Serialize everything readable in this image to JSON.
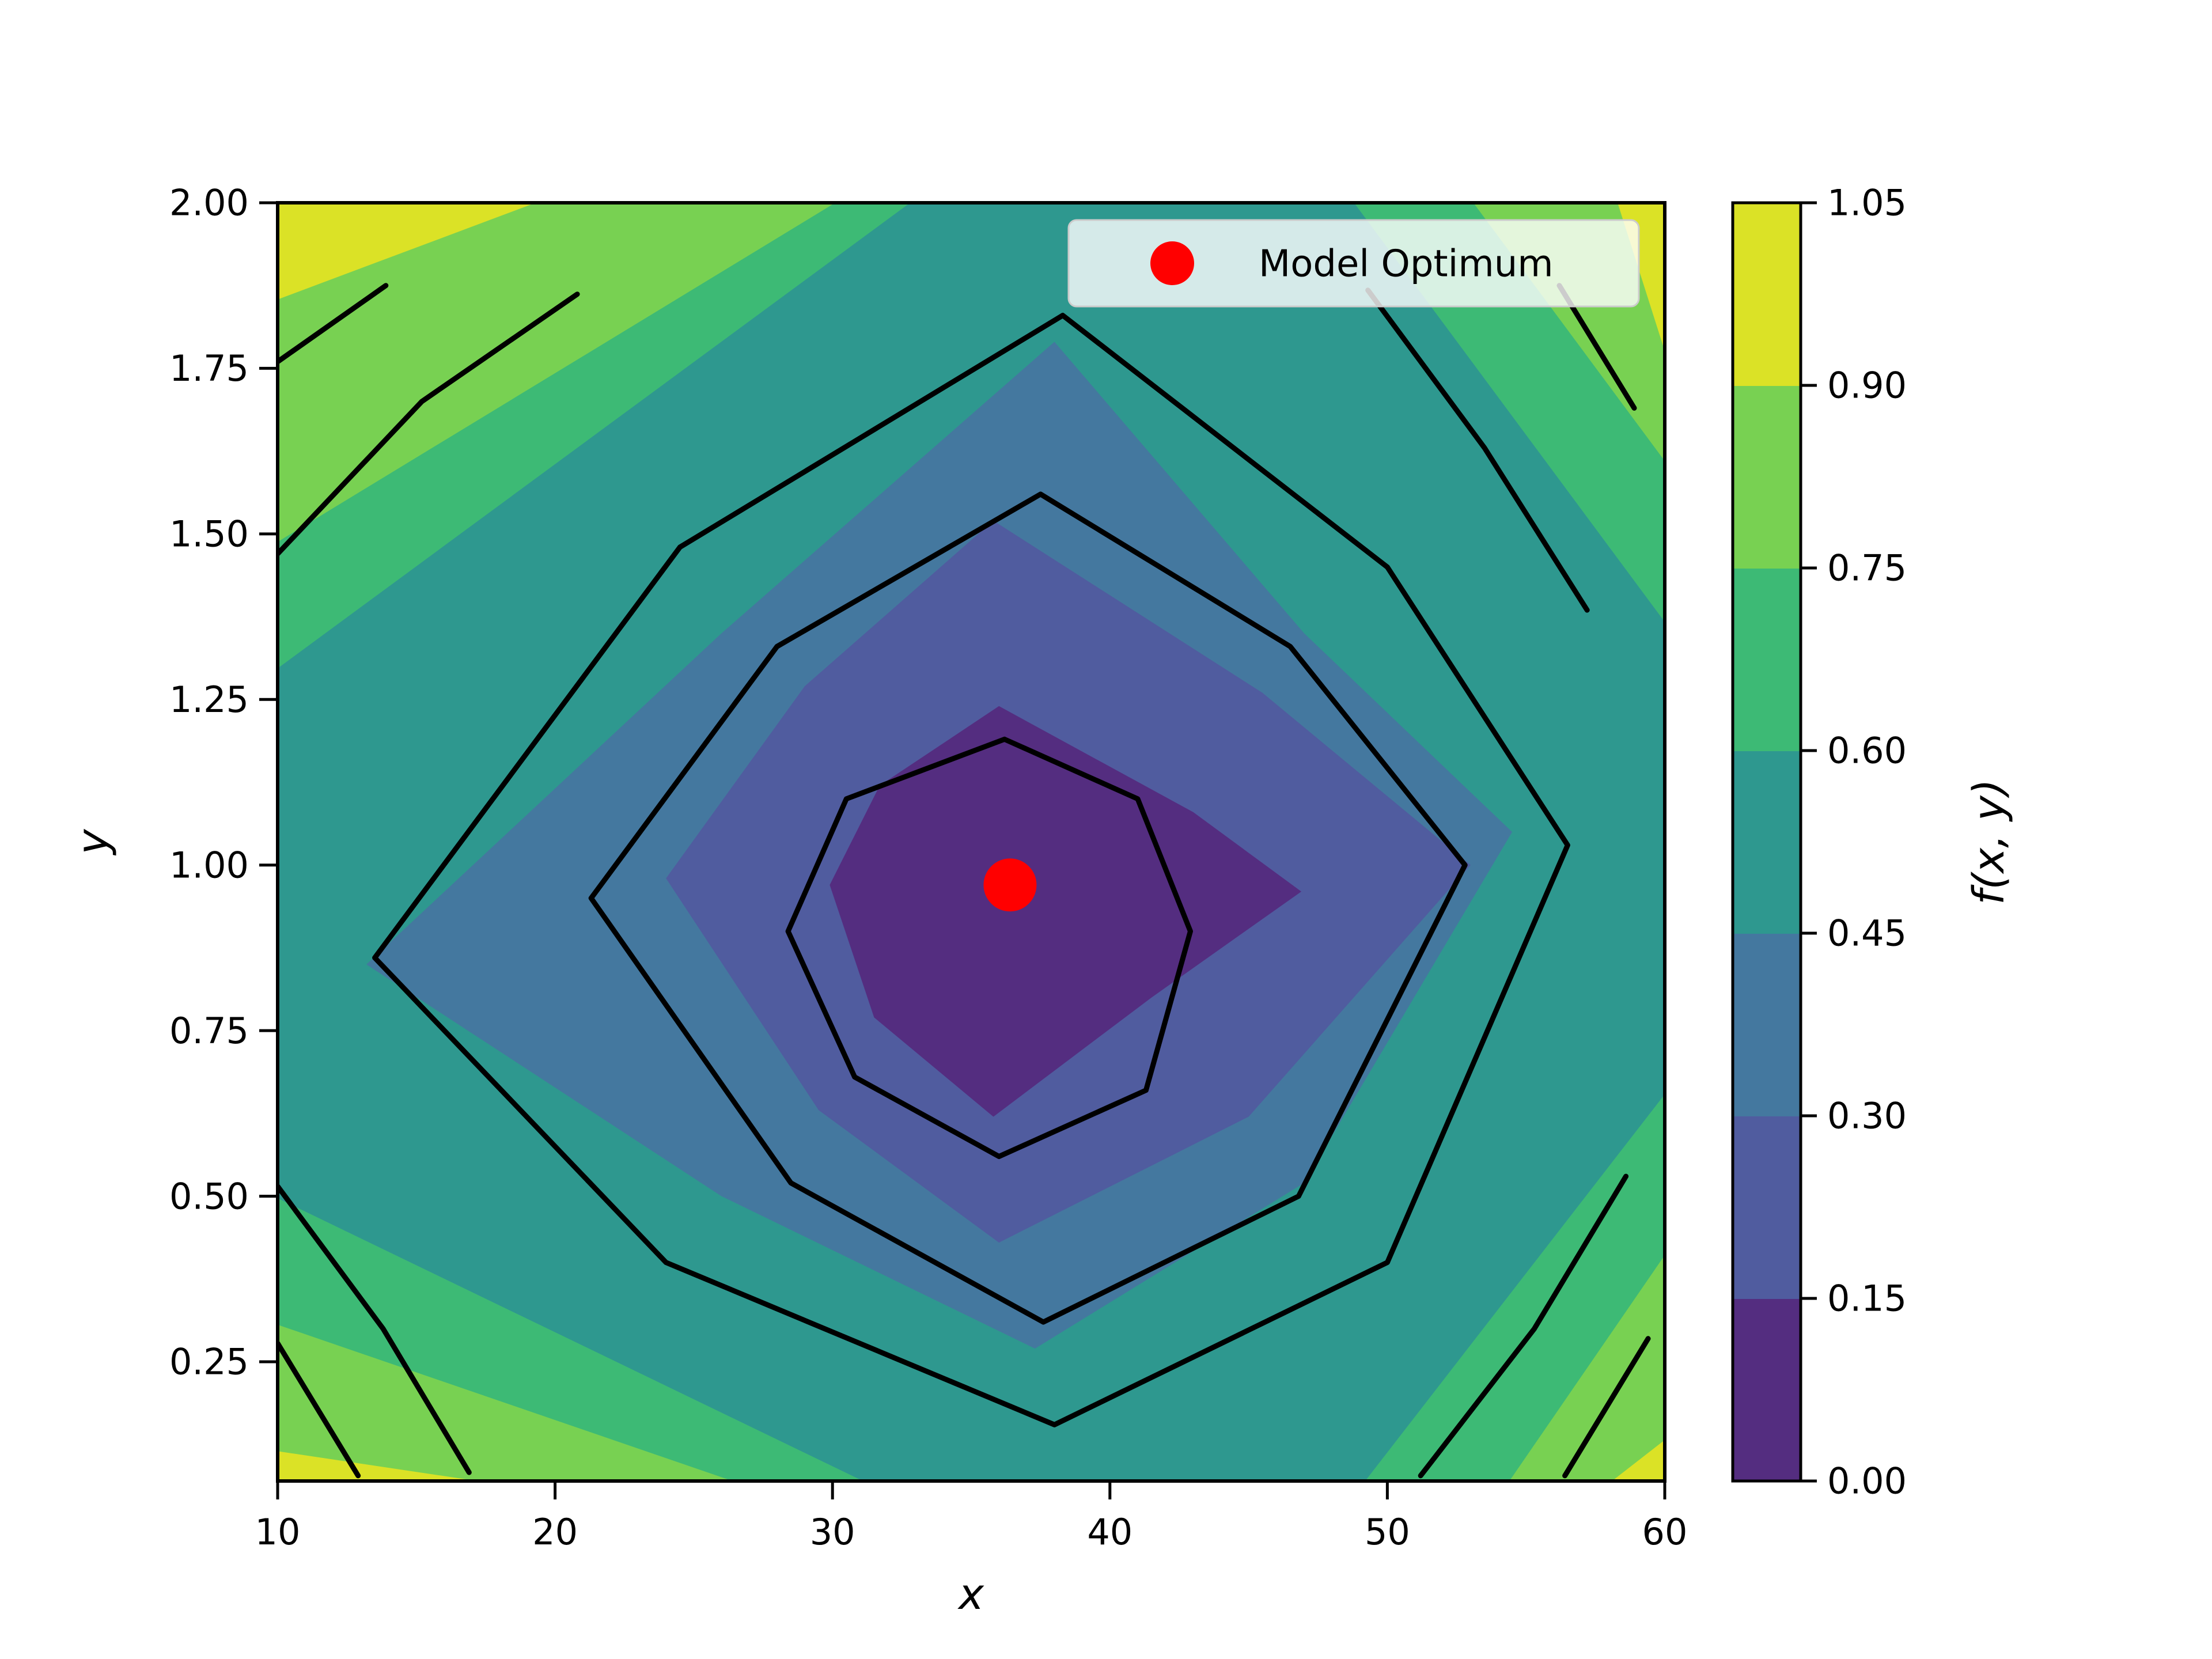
{
  "figure": {
    "background": "#ffffff",
    "text_color": "#000000"
  },
  "chart_data": {
    "type": "contour",
    "title": "",
    "xlabel": "x",
    "ylabel": "y",
    "xlim": [
      10,
      60
    ],
    "ylim": [
      0.07,
      2.0
    ],
    "grid": false,
    "x_ticks": {
      "values": [
        10,
        20,
        30,
        40,
        50,
        60
      ],
      "labels": [
        "10",
        "20",
        "30",
        "40",
        "50",
        "60"
      ]
    },
    "y_ticks": {
      "values": [
        2.0,
        1.75,
        1.5,
        1.25,
        1.0,
        0.75,
        0.5,
        0.25
      ],
      "labels": [
        "2.00",
        "1.75",
        "1.50",
        "1.25",
        "1.00",
        "0.75",
        "0.50",
        "0.25"
      ]
    },
    "levels": [
      0.0,
      0.15,
      0.3,
      0.45,
      0.6,
      0.75,
      0.9,
      1.05
    ],
    "band_colors": [
      "#542d80",
      "#505c9f",
      "#44789f",
      "#2e988f",
      "#3dba75",
      "#78d152",
      "#dbe226"
    ],
    "contour_line_color": "#000000",
    "bands": [
      {
        "max_level": 1.05,
        "polygon": "FULL"
      },
      {
        "max_level": 0.9,
        "polygon": [
          [
            19.3,
            2.0
          ],
          [
            58.3,
            2.0
          ],
          [
            60,
            1.776
          ],
          [
            60,
            0.132
          ],
          [
            58.1,
            0.07
          ],
          [
            17.2,
            0.07
          ],
          [
            10,
            0.115
          ],
          [
            10,
            1.854
          ]
        ]
      },
      {
        "max_level": 0.75,
        "polygon": [
          [
            30.1,
            2.0
          ],
          [
            53.1,
            2.0
          ],
          [
            60,
            1.61
          ],
          [
            60,
            0.411
          ],
          [
            54.4,
            0.07
          ],
          [
            26.4,
            0.07
          ],
          [
            10,
            0.306
          ],
          [
            10,
            1.488
          ]
        ]
      },
      {
        "max_level": 0.6,
        "polygon": [
          [
            32.8,
            2.0
          ],
          [
            48.8,
            2.0
          ],
          [
            60,
            1.367
          ],
          [
            60,
            0.654
          ],
          [
            49.2,
            0.07
          ],
          [
            31.1,
            0.07
          ],
          [
            10,
            0.497
          ],
          [
            10,
            1.297
          ]
        ]
      },
      {
        "max_level": 0.45,
        "polygon": [
          [
            38.0,
            1.79
          ],
          [
            47.0,
            1.35
          ],
          [
            54.5,
            1.05
          ],
          [
            47.0,
            0.52
          ],
          [
            37.3,
            0.27
          ],
          [
            26.0,
            0.5
          ],
          [
            13.2,
            0.85
          ],
          [
            26.0,
            1.35
          ]
        ]
      },
      {
        "max_level": 0.3,
        "polygon": [
          [
            35.8,
            1.52
          ],
          [
            45.5,
            1.26
          ],
          [
            53.0,
            1.0
          ],
          [
            45.0,
            0.62
          ],
          [
            36.0,
            0.43
          ],
          [
            29.5,
            0.63
          ],
          [
            24.0,
            0.98
          ],
          [
            29.0,
            1.27
          ]
        ]
      },
      {
        "max_level": 0.15,
        "polygon": [
          [
            36.0,
            1.24
          ],
          [
            43.0,
            1.08
          ],
          [
            46.9,
            0.96
          ],
          [
            41.5,
            0.8
          ],
          [
            35.8,
            0.62
          ],
          [
            31.5,
            0.77
          ],
          [
            29.9,
            0.97
          ],
          [
            31.7,
            1.12
          ]
        ]
      }
    ],
    "contour_rings": [
      {
        "level": 0.15,
        "polygon": [
          [
            36.2,
            1.19
          ],
          [
            41.0,
            1.1
          ],
          [
            42.9,
            0.9
          ],
          [
            41.3,
            0.66
          ],
          [
            36.0,
            0.56
          ],
          [
            30.8,
            0.68
          ],
          [
            28.4,
            0.9
          ],
          [
            30.5,
            1.1
          ]
        ]
      },
      {
        "level": 0.3,
        "polygon": [
          [
            37.5,
            1.56
          ],
          [
            46.5,
            1.33
          ],
          [
            52.8,
            1.0
          ],
          [
            46.8,
            0.5
          ],
          [
            37.6,
            0.31
          ],
          [
            28.5,
            0.52
          ],
          [
            21.3,
            0.95
          ],
          [
            28.0,
            1.33
          ]
        ]
      },
      {
        "level": 0.45,
        "polygon": [
          [
            38.3,
            1.83
          ],
          [
            50.0,
            1.45
          ],
          [
            56.5,
            1.03
          ],
          [
            50.0,
            0.4
          ],
          [
            38.0,
            0.155
          ],
          [
            24.0,
            0.4
          ],
          [
            13.5,
            0.86
          ],
          [
            24.5,
            1.48
          ]
        ]
      }
    ],
    "contour_segments": [
      {
        "level": 0.9,
        "points": [
          [
            10,
            1.76
          ],
          [
            13.9,
            1.875
          ]
        ]
      },
      {
        "level": 0.75,
        "points": [
          [
            10,
            1.47
          ],
          [
            15.2,
            1.7
          ],
          [
            20.8,
            1.862
          ]
        ]
      },
      {
        "level": 0.75,
        "points": [
          [
            49.3,
            1.868
          ],
          [
            53.5,
            1.63
          ],
          [
            57.2,
            1.385
          ]
        ]
      },
      {
        "level": 0.9,
        "points": [
          [
            56.2,
            1.875
          ],
          [
            58.9,
            1.69
          ]
        ]
      },
      {
        "level": 0.75,
        "points": [
          [
            10,
            0.515
          ],
          [
            13.8,
            0.3
          ],
          [
            16.9,
            0.083
          ]
        ]
      },
      {
        "level": 0.9,
        "points": [
          [
            10,
            0.278
          ],
          [
            12.9,
            0.078
          ]
        ]
      },
      {
        "level": 0.75,
        "points": [
          [
            51.2,
            0.078
          ],
          [
            55.3,
            0.3
          ],
          [
            58.6,
            0.53
          ]
        ]
      },
      {
        "level": 0.9,
        "points": [
          [
            56.4,
            0.078
          ],
          [
            59.4,
            0.285
          ]
        ]
      }
    ],
    "optimum": {
      "x": 36.4,
      "y": 0.97,
      "marker_color": "#ff0000"
    },
    "legend": {
      "label": "Model Optimum",
      "marker_color": "#ff0000",
      "background": "rgba(255,255,255,0.8)",
      "border_color": "#cccccc",
      "position": "upper right"
    },
    "colorbar": {
      "label": "f(x, y)",
      "tick_labels_top_to_bottom": [
        "1.05",
        "0.90",
        "0.75",
        "0.60",
        "0.45",
        "0.30",
        "0.15",
        "0.00"
      ],
      "band_colors_bottom_to_top": [
        "#542d80",
        "#505c9f",
        "#44789f",
        "#2e988f",
        "#3dba75",
        "#78d152",
        "#dbe226"
      ]
    }
  }
}
